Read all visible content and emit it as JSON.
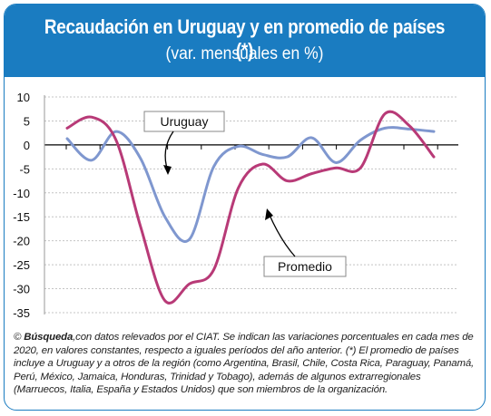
{
  "header": {
    "title": "Recaudación en Uruguay y en promedio de países (*)",
    "subtitle": "(var. mensuales en %)"
  },
  "chart_data": {
    "type": "line",
    "ylim": [
      -35,
      10
    ],
    "yticks": [
      "10",
      "5",
      "0",
      "-5",
      "-10",
      "-15",
      "-20",
      "-25",
      "-30",
      "-35"
    ],
    "grid": "horizontal dashed",
    "colors": {
      "uruguay": "#7f97cf",
      "promedio": "#b83a77"
    },
    "series": [
      {
        "name": "Uruguay",
        "x": [
          0,
          2,
          4,
          6,
          8,
          10,
          12,
          14,
          16,
          18,
          20,
          22,
          24,
          26,
          28,
          30
        ],
        "values": [
          1.3,
          -3.2,
          2.8,
          -2.8,
          -15.0,
          -19.7,
          -4.5,
          -0.3,
          -2.0,
          -2.5,
          1.5,
          -3.7,
          1.0,
          3.5,
          3.3,
          2.8
        ]
      },
      {
        "name": "Promedio",
        "x": [
          0,
          2,
          4,
          6,
          8,
          10,
          12,
          14,
          16,
          18,
          20,
          22,
          24,
          26,
          28,
          30
        ],
        "values": [
          3.5,
          5.8,
          1.0,
          -17.0,
          -32.5,
          -29.0,
          -26.0,
          -9.0,
          -4.0,
          -7.5,
          -6.0,
          -4.8,
          -4.8,
          6.5,
          4.0,
          -2.5
        ]
      }
    ],
    "annotations": [
      "Uruguay",
      "Promedio"
    ]
  },
  "note": {
    "source_name": "Búsqueda",
    "text": ",con datos relevados por el CIAT. Se indican las variaciones porcentuales en cada mes de 2020, en valores constantes, respecto a iguales períodos del año anterior. (*) El promedio de países incluye a Uruguay y a otros de la región (como Argentina, Brasil, Chile, Costa Rica, Paraguay, Panamá, Perú, México, Jamaica, Honduras, Trinidad y Tobago), además de algunos extrarregionales (Marruecos, Italia, España y Estados Unidos) que son miembros de la organización."
  }
}
